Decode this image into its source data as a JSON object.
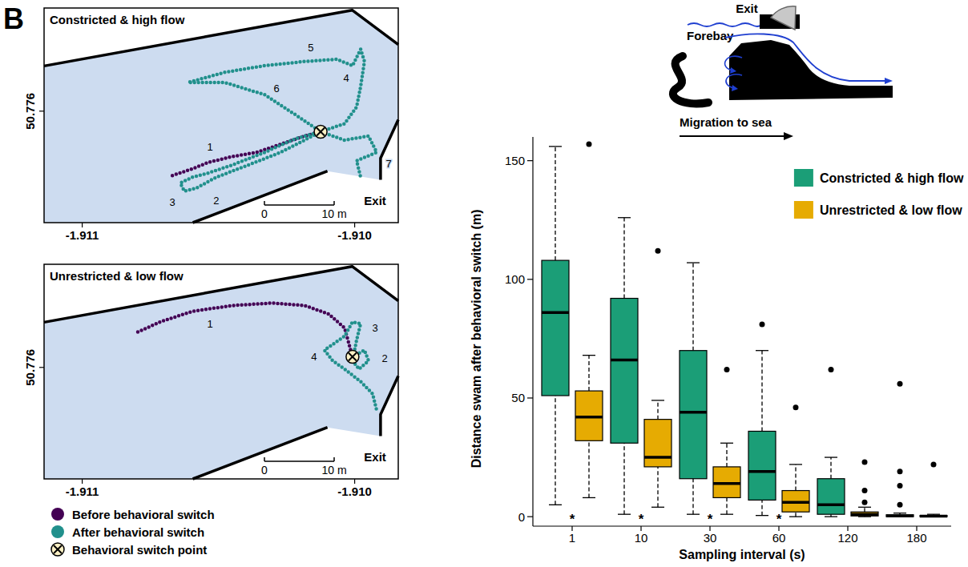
{
  "panel_label": "B",
  "chart_data": [
    {
      "type": "map",
      "title": "Constricted & high flow",
      "xlim": [
        -1.91114,
        -1.90984
      ],
      "ylim": [
        50.7756,
        50.77637
      ],
      "xticks": [
        -1.911,
        {
          "value": -1.91,
          "label": "-1.910"
        }
      ],
      "yticks": [
        50.776
      ],
      "series": [
        {
          "color": "#440154",
          "marker": "circle",
          "x": [
            -1.910669,
            -1.910596,
            -1.910537,
            -1.910449,
            -1.910361,
            -1.910272,
            -1.910184,
            -1.910125
          ],
          "y": [
            50.775769,
            50.775793,
            50.775816,
            50.775837,
            50.775852,
            50.775881,
            50.775911,
            50.775926
          ]
        },
        {
          "color": "#21908c",
          "marker": "circle",
          "x": [
            -1.910125,
            -1.910214,
            -1.910331,
            -1.910449,
            -1.910537,
            -1.910596,
            -1.91064,
            -1.910625,
            -1.910581,
            -1.910508,
            -1.91039,
            -1.910272,
            -1.910184,
            -1.910125,
            -1.910037,
            -1.909993,
            -1.909978,
            -1.909964,
            -1.909978,
            -1.910008,
            -1.910066,
            -1.910184,
            -1.910331,
            -1.910478,
            -1.910611,
            -1.910478,
            -1.910331,
            -1.910214,
            -1.910125,
            -1.910037,
            -1.909949,
            -1.909919,
            -1.909993,
            -1.909978
          ],
          "y": [
            50.775926,
            50.775902,
            50.775852,
            50.775807,
            50.775778,
            50.775763,
            50.775742,
            50.775713,
            50.775724,
            50.775763,
            50.775807,
            50.775852,
            50.775896,
            50.775926,
            50.775955,
            50.776015,
            50.776089,
            50.776178,
            50.776222,
            50.776163,
            50.776186,
            50.776178,
            50.776163,
            50.776139,
            50.776103,
            50.776103,
            50.776059,
            50.775985,
            50.775926,
            50.775896,
            50.775911,
            50.775852,
            50.775822,
            50.775763
          ]
        },
        {
          "color": "#fbf0c4",
          "marker": "x-circle",
          "x": [
            -1.910125
          ],
          "y": [
            50.775926
          ]
        }
      ],
      "annotations": [
        {
          "text": "1",
          "x": -1.910531,
          "y": 50.775872
        },
        {
          "text": "2",
          "x": -1.910508,
          "y": 50.77568
        },
        {
          "text": "3",
          "x": -1.910669,
          "y": 50.775674
        },
        {
          "text": "4",
          "x": -1.910031,
          "y": 50.776118
        },
        {
          "text": "5",
          "x": -1.910161,
          "y": 50.776228
        },
        {
          "text": "6",
          "x": -1.910287,
          "y": 50.77608
        },
        {
          "text": "7",
          "x": -1.909875,
          "y": 50.77581
        },
        {
          "text": "Exit",
          "x": -1.909925,
          "y": 50.77568
        }
      ],
      "scale_bar": [
        "0",
        "10 m"
      ]
    },
    {
      "type": "map",
      "title": "Unrestricted & low flow",
      "xlim": [
        -1.91114,
        -1.90984
      ],
      "ylim": [
        50.7756,
        50.77637
      ],
      "xticks": [
        -1.911,
        {
          "value": -1.91,
          "label": "-1.910"
        }
      ],
      "yticks": [
        50.776
      ],
      "series": [
        {
          "color": "#440154",
          "marker": "circle",
          "x": [
            -1.910796,
            -1.910714,
            -1.910596,
            -1.910449,
            -1.910302,
            -1.910184,
            -1.910096,
            -1.910037,
            -1.910008
          ],
          "y": [
            50.776127,
            50.776163,
            50.776201,
            50.776222,
            50.776231,
            50.776222,
            50.776192,
            50.776142,
            50.776038
          ]
        },
        {
          "color": "#21908c",
          "marker": "circle",
          "x": [
            -1.910008,
            -1.909964,
            -1.909949,
            -1.909984,
            -1.910008,
            -1.909993,
            -1.909978,
            -1.910008,
            -1.910037,
            -1.910111,
            -1.910081,
            -1.910037,
            -1.909978,
            -1.909934,
            -1.909919
          ],
          "y": [
            50.776038,
            50.776062,
            50.776024,
            50.775994,
            50.776024,
            50.776098,
            50.776157,
            50.776163,
            50.776112,
            50.776062,
            50.776024,
            50.775994,
            50.775949,
            50.775905,
            50.775846
          ]
        },
        {
          "color": "#fbf0c4",
          "marker": "x-circle",
          "x": [
            -1.910008
          ],
          "y": [
            50.776038
          ]
        }
      ],
      "annotations": [
        {
          "text": "1",
          "x": -1.910531,
          "y": 50.776155
        },
        {
          "text": "2",
          "x": -1.90989,
          "y": 50.776032
        },
        {
          "text": "3",
          "x": -1.909925,
          "y": 50.776142
        },
        {
          "text": "4",
          "x": -1.910149,
          "y": 50.776038
        },
        {
          "text": "Exit",
          "x": -1.909925,
          "y": 50.77568
        }
      ],
      "scale_bar": [
        "0",
        "10 m"
      ]
    },
    {
      "type": "box",
      "x_label": "Sampling interval (s)",
      "y_label": "Distance swam after behavioral switch (m)",
      "categories": [
        "1",
        "10",
        "30",
        "60",
        "120",
        "180"
      ],
      "ylim": [
        -4,
        160
      ],
      "yticks": [
        0,
        50,
        100,
        150
      ],
      "legend": "top-right",
      "significance_labels": [
        "*",
        "*",
        "*",
        "*",
        null,
        null
      ],
      "series": [
        {
          "name": "Constricted & high flow",
          "color": "#1b9e77",
          "values": [
            {
              "low": 5,
              "q1": 51,
              "median": 86,
              "q3": 108,
              "high": 156,
              "outliers": []
            },
            {
              "low": 1,
              "q1": 31,
              "median": 66,
              "q3": 92,
              "high": 126,
              "outliers": []
            },
            {
              "low": 1,
              "q1": 16,
              "median": 44,
              "q3": 70,
              "high": 107,
              "outliers": []
            },
            {
              "low": 0.5,
              "q1": 7,
              "median": 19,
              "q3": 36,
              "high": 70,
              "outliers": [
                81
              ]
            },
            {
              "low": 0,
              "q1": 1,
              "median": 5,
              "q3": 16,
              "high": 25,
              "outliers": [
                62
              ]
            },
            {
              "low": 0,
              "q1": 0,
              "median": 0.3,
              "q3": 0.8,
              "high": 1.5,
              "outliers": [
                56,
                19,
                13,
                5
              ]
            }
          ]
        },
        {
          "name": "Unrestricted & low flow",
          "color": "#e6ab02",
          "values": [
            {
              "low": 8,
              "q1": 32,
              "median": 42,
              "q3": 53,
              "high": 68,
              "outliers": [
                157
              ]
            },
            {
              "low": 4,
              "q1": 21,
              "median": 25,
              "q3": 41,
              "high": 49,
              "outliers": [
                112
              ]
            },
            {
              "low": 1,
              "q1": 8,
              "median": 14,
              "q3": 21,
              "high": 31,
              "outliers": [
                62
              ]
            },
            {
              "low": 0,
              "q1": 2,
              "median": 6,
              "q3": 11,
              "high": 22,
              "outliers": [
                46
              ]
            },
            {
              "low": 0,
              "q1": 0.3,
              "median": 1,
              "q3": 2,
              "high": 4,
              "outliers": [
                23,
                11,
                6
              ]
            },
            {
              "low": 0,
              "q1": 0,
              "median": 0.2,
              "q3": 0.5,
              "high": 1,
              "outliers": [
                22
              ]
            }
          ]
        }
      ]
    }
  ],
  "map_legend": [
    {
      "label": "Before behavioral switch",
      "color": "#440154",
      "marker": "circle"
    },
    {
      "label": "After behavioral switch",
      "color": "#21908c",
      "marker": "circle"
    },
    {
      "label": "Behavioral switch point",
      "color": "#fbf0c4",
      "marker": "x-circle"
    }
  ],
  "schematic": {
    "exit_label": "Exit",
    "water_label": "Forebay",
    "arrow_label": "Migration to sea"
  }
}
